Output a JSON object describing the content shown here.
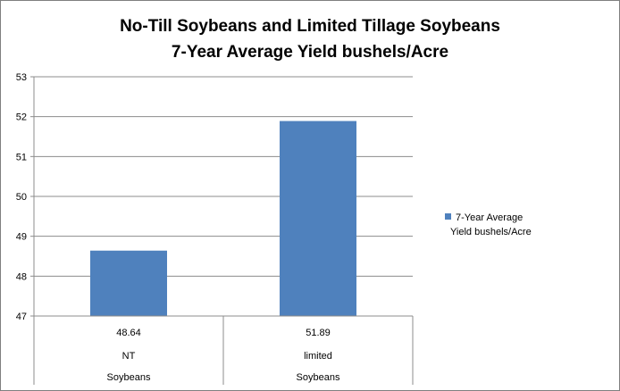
{
  "chart_data": {
    "type": "bar",
    "title": "No-Till Soybeans and Limited Tillage Soybeans",
    "subtitle": "7-Year Average Yield bushels/Acre",
    "categories": [
      [
        "NT",
        "Soybeans"
      ],
      [
        "limited",
        "Soybeans"
      ]
    ],
    "series": [
      {
        "name": "7-Year Average Yield bushels/Acre",
        "values": [
          48.64,
          51.89
        ],
        "color": "#4f81bd"
      }
    ],
    "value_labels": [
      "48.64",
      "51.89"
    ],
    "ylim": [
      47,
      53
    ],
    "yticks": [
      "47",
      "48",
      "49",
      "50",
      "51",
      "52",
      "53"
    ],
    "grid": true,
    "legend": {
      "position": "right",
      "lines": [
        "7-Year Average",
        "Yield bushels/Acre"
      ]
    },
    "data_table": true
  }
}
